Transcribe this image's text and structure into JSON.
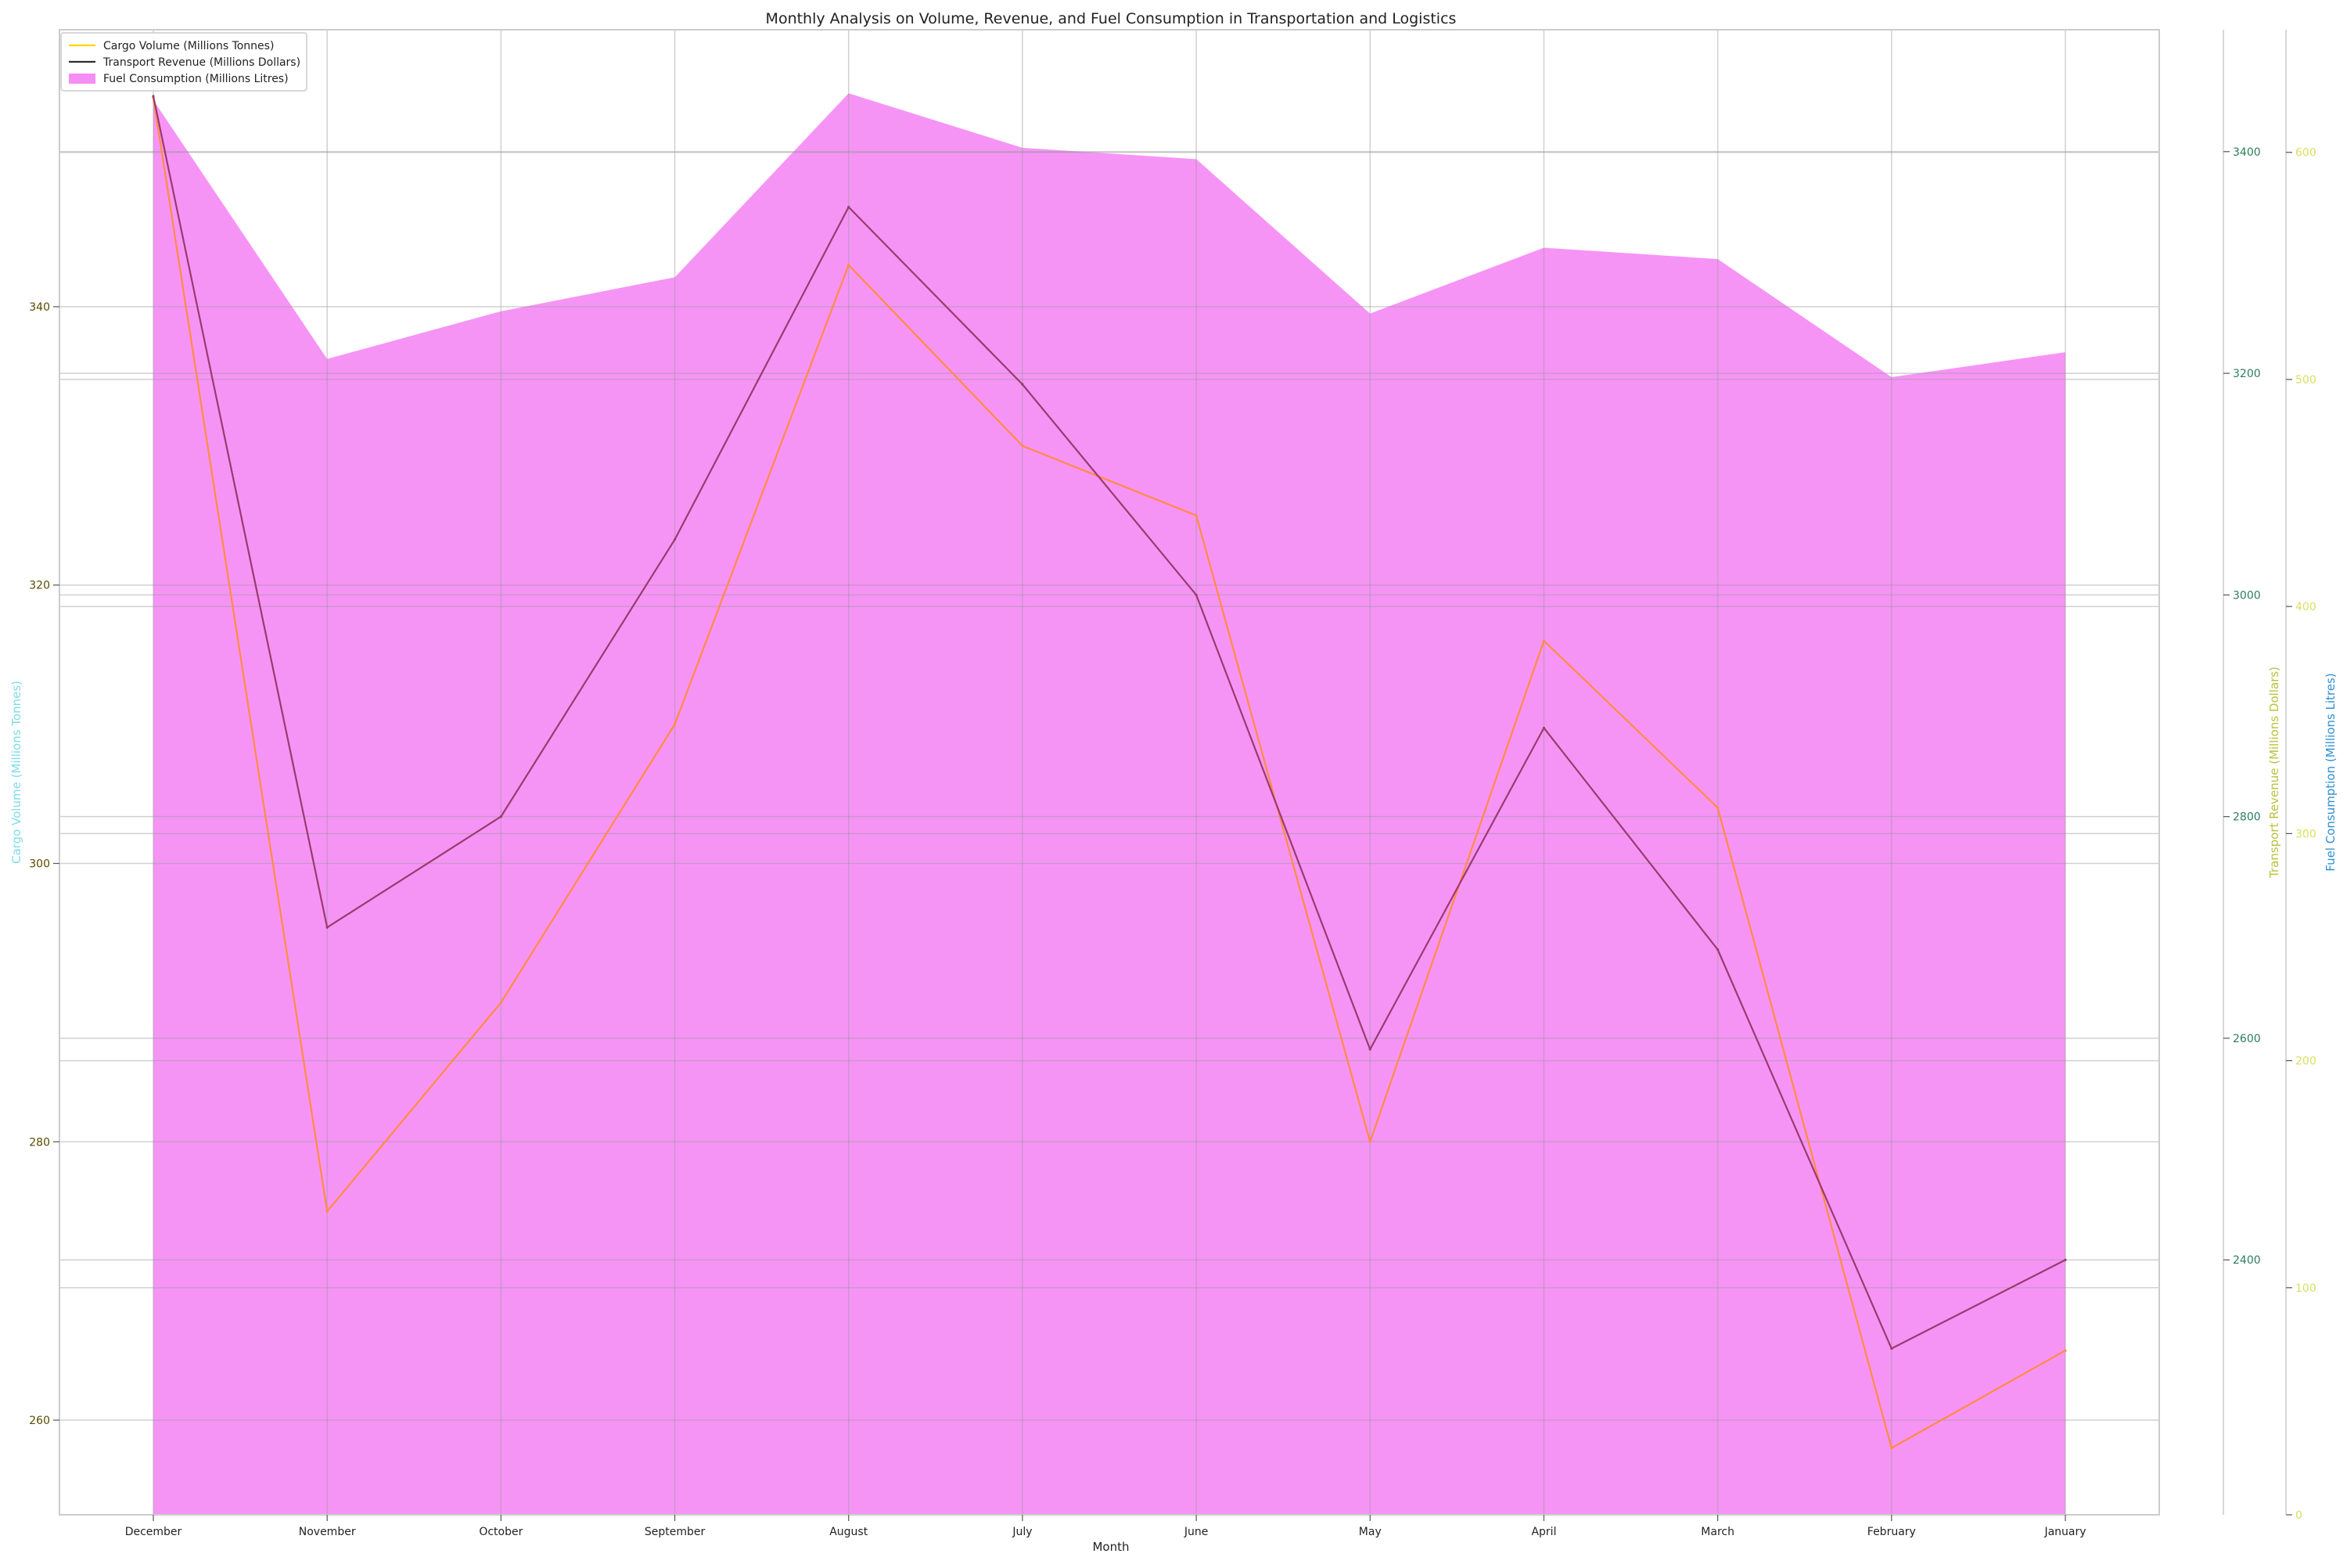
{
  "chart_data": {
    "type": "line",
    "title": "Monthly Analysis on Volume, Revenue, and Fuel Consumption in Transportation and Logistics",
    "xlabel": "Month",
    "categories": [
      "December",
      "November",
      "October",
      "September",
      "August",
      "July",
      "June",
      "May",
      "April",
      "March",
      "February",
      "January"
    ],
    "series": [
      {
        "name": "Cargo Volume (Millions Tonnes)",
        "kind": "line",
        "axis": "left",
        "color": "#ff8c42",
        "legend_color": "#ffd700",
        "values": [
          355,
          275,
          290,
          310,
          343,
          330,
          325,
          280,
          316,
          304,
          258,
          265
        ]
      },
      {
        "name": "Transport Revenue (Millions Dollars)",
        "kind": "line",
        "axis": "right1",
        "color": "#9b3a6e",
        "legend_color": "#2d2d2d",
        "values": [
          3450,
          2700,
          2800,
          3050,
          3350,
          3190,
          3000,
          2590,
          2880,
          2680,
          2320,
          2400
        ]
      },
      {
        "name": "Fuel Consumption (Millions Litres)",
        "kind": "area",
        "axis": "right2",
        "color": "#f58ef5",
        "legend_color": "#f58ef5",
        "values": [
          623,
          509,
          530,
          545,
          626,
          602,
          597,
          529,
          558,
          553,
          501,
          512
        ]
      }
    ],
    "axes": {
      "left": {
        "label": "Cargo Volume (Millions Tonnes)",
        "label_color": "#7fdbe8",
        "tick_color": "#5a4a00",
        "range": [
          253.2,
          359.9
        ],
        "ticks": [
          260,
          280,
          300,
          320,
          340
        ]
      },
      "right1": {
        "label": "Transport Revenue (Millions Dollars)",
        "label_color": "#b8c23c",
        "tick_color": "#2e7d5b",
        "range": [
          2170,
          3510
        ],
        "ticks": [
          2400,
          2600,
          2800,
          3000,
          3200,
          3400
        ]
      },
      "right2": {
        "label": "Fuel Consumption (Millions Litres)",
        "label_color": "#2f8fcf",
        "tick_color": "#d8e060",
        "range": [
          0,
          654
        ],
        "ticks": [
          0,
          100,
          200,
          300,
          400,
          500,
          600
        ]
      }
    },
    "grid": true,
    "legend_position": "top-left"
  }
}
